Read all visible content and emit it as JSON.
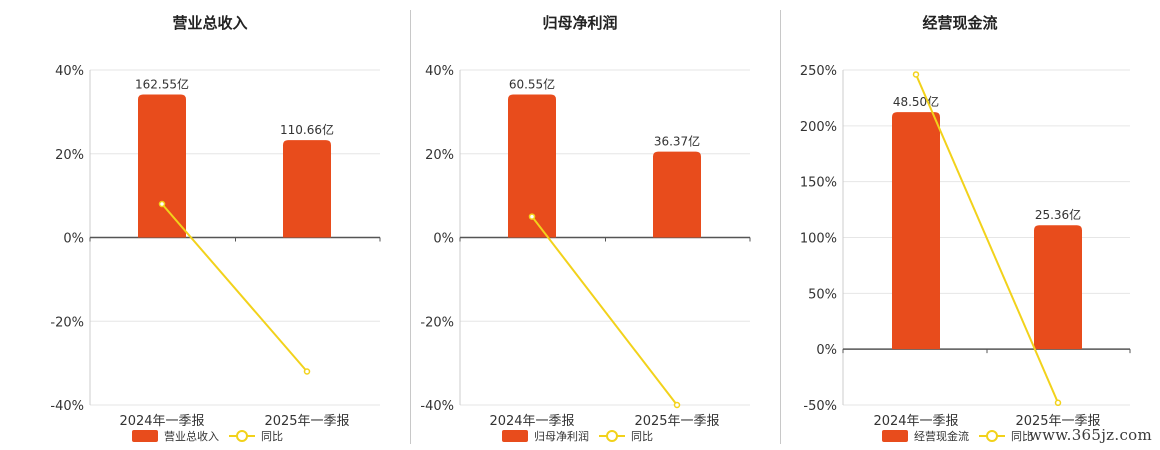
{
  "colors": {
    "bar": "#E84C1C",
    "line": "#F2D21B",
    "axis": "#555555",
    "grid": "#e6e6e6",
    "text": "#333333"
  },
  "watermark": "www.365jz.com",
  "chart_data": [
    {
      "type": "bar",
      "title": "营业总收入",
      "categories": [
        "2024年一季报",
        "2025年一季报"
      ],
      "series": [
        {
          "name": "营业总收入",
          "type": "bar",
          "axis": "value",
          "values": [
            162.55,
            110.66
          ],
          "labels": [
            "162.55亿",
            "110.66亿"
          ]
        },
        {
          "name": "同比",
          "type": "line",
          "axis": "percent",
          "values": [
            8,
            -32
          ]
        }
      ],
      "ylim": [
        -40,
        40
      ],
      "yticks": [
        -40,
        -20,
        0,
        20,
        40
      ],
      "ytick_labels": [
        "-40%",
        "-20%",
        "0%",
        "20%",
        "40%"
      ],
      "grid": true,
      "legend": "bottom"
    },
    {
      "type": "bar",
      "title": "归母净利润",
      "categories": [
        "2024年一季报",
        "2025年一季报"
      ],
      "series": [
        {
          "name": "归母净利润",
          "type": "bar",
          "axis": "value",
          "values": [
            60.55,
            36.37
          ],
          "labels": [
            "60.55亿",
            "36.37亿"
          ]
        },
        {
          "name": "同比",
          "type": "line",
          "axis": "percent",
          "values": [
            5,
            -40
          ]
        }
      ],
      "ylim": [
        -40,
        40
      ],
      "yticks": [
        -40,
        -20,
        0,
        20,
        40
      ],
      "ytick_labels": [
        "-40%",
        "-20%",
        "0%",
        "20%",
        "40%"
      ],
      "grid": true,
      "legend": "bottom"
    },
    {
      "type": "bar",
      "title": "经营现金流",
      "categories": [
        "2024年一季报",
        "2025年一季报"
      ],
      "series": [
        {
          "name": "经营现金流",
          "type": "bar",
          "axis": "value",
          "values": [
            48.5,
            25.36
          ],
          "labels": [
            "48.50亿",
            "25.36亿"
          ]
        },
        {
          "name": "同比",
          "type": "line",
          "axis": "percent",
          "values": [
            246,
            -48
          ]
        }
      ],
      "ylim": [
        -50,
        250
      ],
      "yticks": [
        -50,
        0,
        50,
        100,
        150,
        200,
        250
      ],
      "ytick_labels": [
        "-50%",
        "0%",
        "50%",
        "100%",
        "150%",
        "200%",
        "250%"
      ],
      "grid": true,
      "legend": "bottom"
    }
  ]
}
